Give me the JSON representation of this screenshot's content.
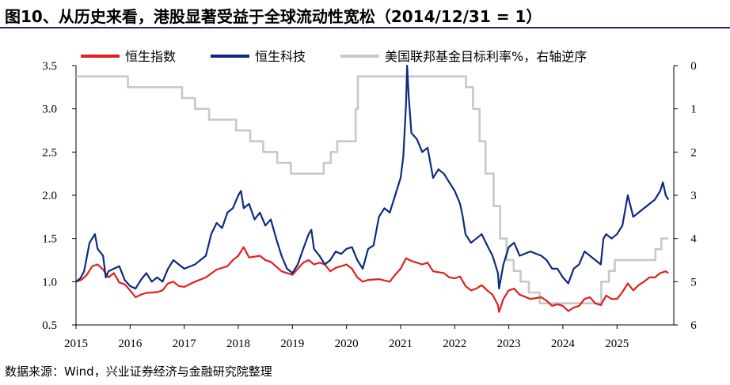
{
  "title": "图10、从历史来看，港股显著受益于全球流动性宽松（2014/12/31 = 1）",
  "source": "数据来源：Wind，兴业证券经济与金融研究院整理",
  "colors": {
    "hsi": "#e0201e",
    "hstech": "#0d2a7f",
    "fedrate": "#c8c8c8"
  },
  "chart_data": {
    "type": "line",
    "title": "从历史来看，港股显著受益于全球流动性宽松（2014/12/31 = 1）",
    "x_ticks": [
      "2015",
      "2016",
      "2017",
      "2018",
      "2019",
      "2020",
      "2021",
      "2022",
      "2023",
      "2024",
      "2025"
    ],
    "xlim": [
      2015.0,
      2026.05
    ],
    "ylim_left": [
      0.5,
      3.5
    ],
    "y_ticks_left": [
      "0.5",
      "1.0",
      "1.5",
      "2.0",
      "2.5",
      "3.0",
      "3.5"
    ],
    "ylim_right_inverted": [
      0,
      6
    ],
    "y_ticks_right": [
      "0",
      "1",
      "2",
      "3",
      "4",
      "5",
      "6"
    ],
    "series": [
      {
        "name": "恒生指数",
        "axis": "left",
        "color": "#e0201e",
        "points": [
          [
            2015.0,
            1.0
          ],
          [
            2015.1,
            1.02
          ],
          [
            2015.2,
            1.08
          ],
          [
            2015.3,
            1.18
          ],
          [
            2015.4,
            1.2
          ],
          [
            2015.5,
            1.14
          ],
          [
            2015.6,
            1.05
          ],
          [
            2015.7,
            1.1
          ],
          [
            2015.8,
            0.99
          ],
          [
            2015.9,
            0.97
          ],
          [
            2016.0,
            0.9
          ],
          [
            2016.1,
            0.82
          ],
          [
            2016.2,
            0.85
          ],
          [
            2016.3,
            0.87
          ],
          [
            2016.5,
            0.88
          ],
          [
            2016.6,
            0.9
          ],
          [
            2016.7,
            0.98
          ],
          [
            2016.8,
            1.0
          ],
          [
            2016.9,
            0.95
          ],
          [
            2017.0,
            0.94
          ],
          [
            2017.2,
            1.0
          ],
          [
            2017.4,
            1.05
          ],
          [
            2017.6,
            1.14
          ],
          [
            2017.8,
            1.18
          ],
          [
            2017.9,
            1.25
          ],
          [
            2018.0,
            1.3
          ],
          [
            2018.1,
            1.4
          ],
          [
            2018.2,
            1.28
          ],
          [
            2018.4,
            1.3
          ],
          [
            2018.5,
            1.25
          ],
          [
            2018.6,
            1.23
          ],
          [
            2018.8,
            1.12
          ],
          [
            2018.9,
            1.1
          ],
          [
            2019.0,
            1.08
          ],
          [
            2019.2,
            1.22
          ],
          [
            2019.3,
            1.25
          ],
          [
            2019.4,
            1.2
          ],
          [
            2019.5,
            1.22
          ],
          [
            2019.6,
            1.2
          ],
          [
            2019.7,
            1.12
          ],
          [
            2019.8,
            1.16
          ],
          [
            2019.9,
            1.18
          ],
          [
            2020.0,
            1.2
          ],
          [
            2020.1,
            1.15
          ],
          [
            2020.2,
            1.05
          ],
          [
            2020.3,
            1.0
          ],
          [
            2020.4,
            1.02
          ],
          [
            2020.6,
            1.03
          ],
          [
            2020.8,
            1.0
          ],
          [
            2020.9,
            1.08
          ],
          [
            2021.0,
            1.15
          ],
          [
            2021.1,
            1.27
          ],
          [
            2021.2,
            1.24
          ],
          [
            2021.4,
            1.2
          ],
          [
            2021.5,
            1.22
          ],
          [
            2021.6,
            1.12
          ],
          [
            2021.8,
            1.1
          ],
          [
            2021.9,
            1.05
          ],
          [
            2022.0,
            1.04
          ],
          [
            2022.1,
            1.06
          ],
          [
            2022.2,
            0.95
          ],
          [
            2022.3,
            0.9
          ],
          [
            2022.4,
            0.92
          ],
          [
            2022.5,
            0.96
          ],
          [
            2022.6,
            0.9
          ],
          [
            2022.7,
            0.85
          ],
          [
            2022.8,
            0.73
          ],
          [
            2022.82,
            0.65
          ],
          [
            2022.9,
            0.8
          ],
          [
            2023.0,
            0.9
          ],
          [
            2023.1,
            0.92
          ],
          [
            2023.2,
            0.85
          ],
          [
            2023.4,
            0.8
          ],
          [
            2023.6,
            0.82
          ],
          [
            2023.7,
            0.78
          ],
          [
            2023.8,
            0.72
          ],
          [
            2023.9,
            0.74
          ],
          [
            2024.0,
            0.72
          ],
          [
            2024.1,
            0.66
          ],
          [
            2024.2,
            0.7
          ],
          [
            2024.3,
            0.72
          ],
          [
            2024.4,
            0.8
          ],
          [
            2024.5,
            0.82
          ],
          [
            2024.6,
            0.75
          ],
          [
            2024.7,
            0.73
          ],
          [
            2024.8,
            0.84
          ],
          [
            2024.9,
            0.8
          ],
          [
            2025.0,
            0.8
          ],
          [
            2025.1,
            0.88
          ],
          [
            2025.2,
            0.98
          ],
          [
            2025.3,
            0.9
          ],
          [
            2025.4,
            0.96
          ],
          [
            2025.5,
            1.0
          ],
          [
            2025.6,
            1.05
          ],
          [
            2025.7,
            1.05
          ],
          [
            2025.8,
            1.1
          ],
          [
            2025.9,
            1.12
          ],
          [
            2025.95,
            1.1
          ]
        ]
      },
      {
        "name": "恒生科技",
        "axis": "left",
        "color": "#0d2a7f",
        "points": [
          [
            2015.0,
            1.0
          ],
          [
            2015.08,
            1.04
          ],
          [
            2015.15,
            1.12
          ],
          [
            2015.25,
            1.45
          ],
          [
            2015.35,
            1.55
          ],
          [
            2015.4,
            1.38
          ],
          [
            2015.5,
            1.3
          ],
          [
            2015.55,
            1.05
          ],
          [
            2015.6,
            1.12
          ],
          [
            2015.7,
            1.15
          ],
          [
            2015.8,
            1.18
          ],
          [
            2015.9,
            1.02
          ],
          [
            2016.0,
            0.95
          ],
          [
            2016.1,
            0.92
          ],
          [
            2016.2,
            1.02
          ],
          [
            2016.3,
            1.1
          ],
          [
            2016.4,
            1.0
          ],
          [
            2016.5,
            1.05
          ],
          [
            2016.6,
            1.0
          ],
          [
            2016.7,
            1.15
          ],
          [
            2016.8,
            1.25
          ],
          [
            2016.9,
            1.2
          ],
          [
            2017.0,
            1.15
          ],
          [
            2017.2,
            1.2
          ],
          [
            2017.4,
            1.3
          ],
          [
            2017.5,
            1.55
          ],
          [
            2017.6,
            1.68
          ],
          [
            2017.7,
            1.62
          ],
          [
            2017.8,
            1.8
          ],
          [
            2017.9,
            1.85
          ],
          [
            2018.0,
            2.0
          ],
          [
            2018.05,
            2.05
          ],
          [
            2018.1,
            1.85
          ],
          [
            2018.2,
            1.9
          ],
          [
            2018.3,
            1.72
          ],
          [
            2018.4,
            1.8
          ],
          [
            2018.5,
            1.65
          ],
          [
            2018.6,
            1.72
          ],
          [
            2018.7,
            1.5
          ],
          [
            2018.8,
            1.3
          ],
          [
            2018.9,
            1.15
          ],
          [
            2019.0,
            1.1
          ],
          [
            2019.1,
            1.2
          ],
          [
            2019.2,
            1.38
          ],
          [
            2019.3,
            1.55
          ],
          [
            2019.35,
            1.6
          ],
          [
            2019.4,
            1.38
          ],
          [
            2019.5,
            1.3
          ],
          [
            2019.6,
            1.2
          ],
          [
            2019.7,
            1.25
          ],
          [
            2019.8,
            1.35
          ],
          [
            2019.9,
            1.32
          ],
          [
            2020.0,
            1.38
          ],
          [
            2020.1,
            1.4
          ],
          [
            2020.2,
            1.25
          ],
          [
            2020.3,
            1.15
          ],
          [
            2020.4,
            1.38
          ],
          [
            2020.5,
            1.42
          ],
          [
            2020.6,
            1.75
          ],
          [
            2020.7,
            1.85
          ],
          [
            2020.8,
            1.8
          ],
          [
            2020.9,
            2.0
          ],
          [
            2021.0,
            2.2
          ],
          [
            2021.05,
            2.45
          ],
          [
            2021.1,
            3.05
          ],
          [
            2021.12,
            3.5
          ],
          [
            2021.15,
            3.15
          ],
          [
            2021.2,
            2.72
          ],
          [
            2021.3,
            2.65
          ],
          [
            2021.4,
            2.5
          ],
          [
            2021.5,
            2.55
          ],
          [
            2021.6,
            2.2
          ],
          [
            2021.7,
            2.3
          ],
          [
            2021.8,
            2.25
          ],
          [
            2021.9,
            2.15
          ],
          [
            2022.0,
            2.05
          ],
          [
            2022.1,
            1.9
          ],
          [
            2022.15,
            1.75
          ],
          [
            2022.2,
            1.55
          ],
          [
            2022.3,
            1.45
          ],
          [
            2022.4,
            1.5
          ],
          [
            2022.5,
            1.55
          ],
          [
            2022.6,
            1.42
          ],
          [
            2022.7,
            1.3
          ],
          [
            2022.8,
            1.1
          ],
          [
            2022.82,
            0.92
          ],
          [
            2022.9,
            1.2
          ],
          [
            2023.0,
            1.4
          ],
          [
            2023.1,
            1.45
          ],
          [
            2023.2,
            1.3
          ],
          [
            2023.4,
            1.35
          ],
          [
            2023.6,
            1.3
          ],
          [
            2023.7,
            1.25
          ],
          [
            2023.8,
            1.15
          ],
          [
            2023.9,
            1.15
          ],
          [
            2024.0,
            1.05
          ],
          [
            2024.1,
            0.98
          ],
          [
            2024.2,
            1.15
          ],
          [
            2024.3,
            1.2
          ],
          [
            2024.4,
            1.35
          ],
          [
            2024.5,
            1.3
          ],
          [
            2024.6,
            1.25
          ],
          [
            2024.7,
            1.2
          ],
          [
            2024.75,
            1.5
          ],
          [
            2024.8,
            1.55
          ],
          [
            2024.9,
            1.5
          ],
          [
            2025.0,
            1.55
          ],
          [
            2025.1,
            1.65
          ],
          [
            2025.2,
            2.0
          ],
          [
            2025.3,
            1.75
          ],
          [
            2025.4,
            1.8
          ],
          [
            2025.5,
            1.85
          ],
          [
            2025.6,
            1.9
          ],
          [
            2025.7,
            1.95
          ],
          [
            2025.8,
            2.05
          ],
          [
            2025.85,
            2.15
          ],
          [
            2025.9,
            2.0
          ],
          [
            2025.95,
            1.95
          ]
        ]
      },
      {
        "name": "美国联邦基金目标利率%，右轴逆序",
        "axis": "right",
        "color": "#c8c8c8",
        "points": [
          [
            2015.0,
            0.25
          ],
          [
            2015.96,
            0.25
          ],
          [
            2015.96,
            0.5
          ],
          [
            2016.96,
            0.5
          ],
          [
            2016.96,
            0.75
          ],
          [
            2017.2,
            0.75
          ],
          [
            2017.2,
            1.0
          ],
          [
            2017.46,
            1.0
          ],
          [
            2017.46,
            1.25
          ],
          [
            2017.96,
            1.25
          ],
          [
            2017.96,
            1.5
          ],
          [
            2018.22,
            1.5
          ],
          [
            2018.22,
            1.75
          ],
          [
            2018.46,
            1.75
          ],
          [
            2018.46,
            2.0
          ],
          [
            2018.72,
            2.0
          ],
          [
            2018.72,
            2.25
          ],
          [
            2018.97,
            2.25
          ],
          [
            2018.97,
            2.5
          ],
          [
            2019.58,
            2.5
          ],
          [
            2019.58,
            2.25
          ],
          [
            2019.71,
            2.25
          ],
          [
            2019.71,
            2.0
          ],
          [
            2019.83,
            2.0
          ],
          [
            2019.83,
            1.75
          ],
          [
            2020.17,
            1.75
          ],
          [
            2020.17,
            1.0
          ],
          [
            2020.21,
            1.0
          ],
          [
            2020.21,
            0.25
          ],
          [
            2022.21,
            0.25
          ],
          [
            2022.21,
            0.5
          ],
          [
            2022.34,
            0.5
          ],
          [
            2022.34,
            1.0
          ],
          [
            2022.46,
            1.0
          ],
          [
            2022.46,
            1.75
          ],
          [
            2022.57,
            1.75
          ],
          [
            2022.57,
            2.5
          ],
          [
            2022.72,
            2.5
          ],
          [
            2022.72,
            3.25
          ],
          [
            2022.84,
            3.25
          ],
          [
            2022.84,
            4.0
          ],
          [
            2022.96,
            4.0
          ],
          [
            2022.96,
            4.5
          ],
          [
            2023.09,
            4.5
          ],
          [
            2023.09,
            4.75
          ],
          [
            2023.22,
            4.75
          ],
          [
            2023.22,
            5.0
          ],
          [
            2023.37,
            5.0
          ],
          [
            2023.37,
            5.25
          ],
          [
            2023.57,
            5.25
          ],
          [
            2023.57,
            5.5
          ],
          [
            2024.71,
            5.5
          ],
          [
            2024.71,
            5.0
          ],
          [
            2024.85,
            5.0
          ],
          [
            2024.85,
            4.75
          ],
          [
            2024.96,
            4.75
          ],
          [
            2024.96,
            4.5
          ],
          [
            2025.71,
            4.5
          ],
          [
            2025.71,
            4.25
          ],
          [
            2025.82,
            4.25
          ],
          [
            2025.82,
            4.0
          ],
          [
            2025.95,
            4.0
          ]
        ]
      }
    ]
  }
}
